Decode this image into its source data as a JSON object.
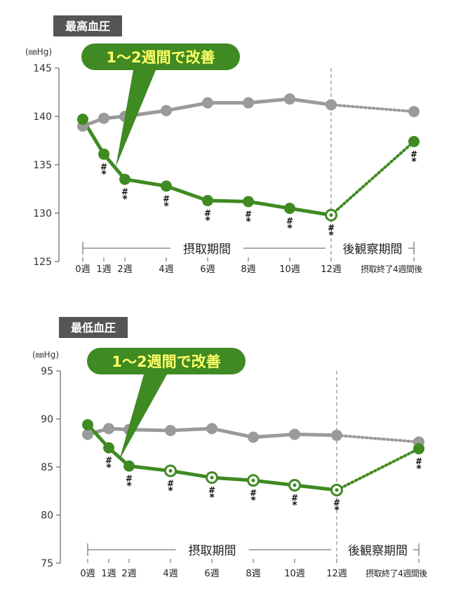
{
  "colors": {
    "treatment": "#3f8a22",
    "placebo": "#9a9a9a",
    "callout_fill": "#3f8a22",
    "callout_text": "#ffff66",
    "title_bg": "#555555",
    "axis": "#666666"
  },
  "chart_data": [
    {
      "type": "line",
      "title": "最高血圧",
      "ylabel": "(㎜Hg)",
      "ylim": [
        125,
        145
      ],
      "yticks": [
        "125",
        "130",
        "135",
        "140",
        "145"
      ],
      "x_ticks": [
        {
          "label": "0週",
          "week": 0
        },
        {
          "label": "1週",
          "week": 1
        },
        {
          "label": "2週",
          "week": 2
        },
        {
          "label": "4週",
          "week": 4
        },
        {
          "label": "6週",
          "week": 6
        },
        {
          "label": "8週",
          "week": 8
        },
        {
          "label": "10週",
          "week": 10
        },
        {
          "label": "12週",
          "week": 12
        },
        {
          "label": "摂取終了4週間後",
          "week": 16
        }
      ],
      "callout": "1～2週間で改善",
      "period_intake": "摂取期間",
      "period_followup": "後観察期間",
      "series": [
        {
          "role": "placebo",
          "x": [
            0,
            1,
            2,
            4,
            6,
            8,
            10,
            12,
            16
          ],
          "values": [
            139.0,
            139.8,
            140.0,
            140.6,
            141.4,
            141.4,
            141.8,
            141.2,
            140.5
          ]
        },
        {
          "role": "treatment",
          "x": [
            0,
            1,
            2,
            4,
            6,
            8,
            10,
            12,
            16
          ],
          "values": [
            139.7,
            136.1,
            133.5,
            132.8,
            131.3,
            131.2,
            130.5,
            129.8,
            137.4
          ],
          "marks": [
            "",
            "#*",
            "#*",
            "#*",
            "#*",
            "#*",
            "#*",
            "#*",
            "#*"
          ],
          "open": [
            false,
            false,
            false,
            false,
            false,
            false,
            false,
            true,
            false
          ]
        }
      ]
    },
    {
      "type": "line",
      "title": "最低血圧",
      "ylabel": "(㎜Hg)",
      "ylim": [
        75,
        95
      ],
      "yticks": [
        "75",
        "80",
        "85",
        "90",
        "95"
      ],
      "x_ticks": [
        {
          "label": "0週",
          "week": 0
        },
        {
          "label": "1週",
          "week": 1
        },
        {
          "label": "2週",
          "week": 2
        },
        {
          "label": "4週",
          "week": 4
        },
        {
          "label": "6週",
          "week": 6
        },
        {
          "label": "8週",
          "week": 8
        },
        {
          "label": "10週",
          "week": 10
        },
        {
          "label": "12週",
          "week": 12
        },
        {
          "label": "摂取終了4週間後",
          "week": 16
        }
      ],
      "callout": "1～2週間で改善",
      "period_intake": "摂取期間",
      "period_followup": "後観察期間",
      "series": [
        {
          "role": "placebo",
          "x": [
            0,
            1,
            2,
            4,
            6,
            8,
            10,
            12,
            16
          ],
          "values": [
            88.4,
            89.0,
            88.9,
            88.8,
            89.0,
            88.1,
            88.4,
            88.3,
            87.6
          ]
        },
        {
          "role": "treatment",
          "x": [
            0,
            1,
            2,
            4,
            6,
            8,
            10,
            12,
            16
          ],
          "values": [
            89.4,
            87.0,
            85.1,
            84.6,
            83.9,
            83.6,
            83.1,
            82.6,
            86.9
          ],
          "marks": [
            "",
            "#*",
            "#*",
            "#*",
            "#*",
            "#*",
            "#*",
            "#*",
            "#*"
          ],
          "open": [
            false,
            false,
            false,
            true,
            true,
            true,
            true,
            true,
            false
          ]
        }
      ]
    }
  ]
}
